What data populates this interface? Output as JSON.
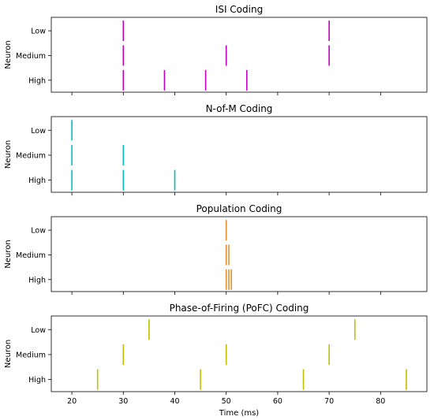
{
  "chart_data": [
    {
      "type": "eventplot",
      "title": "ISI Coding",
      "ylabel": "Neuron",
      "xlabel": "",
      "categories": [
        "Low",
        "Medium",
        "High"
      ],
      "color": "#bf00bf",
      "xlim": [
        16,
        89
      ],
      "series": [
        {
          "name": "Low",
          "spikes": [
            30,
            70
          ]
        },
        {
          "name": "Medium",
          "spikes": [
            30,
            50,
            70
          ]
        },
        {
          "name": "High",
          "spikes": [
            30,
            38,
            46,
            54
          ]
        }
      ],
      "show_xtick_labels": false
    },
    {
      "type": "eventplot",
      "title": "N-of-M Coding",
      "ylabel": "Neuron",
      "xlabel": "",
      "categories": [
        "Low",
        "Medium",
        "High"
      ],
      "color": "#00bfbf",
      "xlim": [
        16,
        89
      ],
      "series": [
        {
          "name": "Low",
          "spikes": [
            20
          ]
        },
        {
          "name": "Medium",
          "spikes": [
            20,
            30
          ]
        },
        {
          "name": "High",
          "spikes": [
            20,
            30,
            40
          ]
        }
      ],
      "show_xtick_labels": false
    },
    {
      "type": "eventplot",
      "title": "Population Coding",
      "ylabel": "Neuron",
      "xlabel": "",
      "categories": [
        "Low",
        "Medium",
        "High"
      ],
      "color": "#e8912e",
      "xlim": [
        16,
        89
      ],
      "series": [
        {
          "name": "Low",
          "spikes": [
            50
          ]
        },
        {
          "name": "Medium",
          "spikes": [
            50,
            50.5
          ]
        },
        {
          "name": "High",
          "spikes": [
            50,
            50.5,
            51
          ]
        }
      ],
      "show_xtick_labels": false
    },
    {
      "type": "eventplot",
      "title": "Phase-of-Firing (PoFC) Coding",
      "ylabel": "Neuron",
      "xlabel": "Time (ms)",
      "categories": [
        "Low",
        "Medium",
        "High"
      ],
      "color": "#bfbf00",
      "xlim": [
        16,
        89
      ],
      "series": [
        {
          "name": "Low",
          "spikes": [
            35,
            75
          ]
        },
        {
          "name": "Medium",
          "spikes": [
            30,
            50,
            70
          ]
        },
        {
          "name": "High",
          "spikes": [
            25,
            45,
            65,
            85
          ]
        }
      ],
      "show_xtick_labels": true
    }
  ],
  "xticks": [
    20,
    30,
    40,
    50,
    60,
    70,
    80
  ]
}
